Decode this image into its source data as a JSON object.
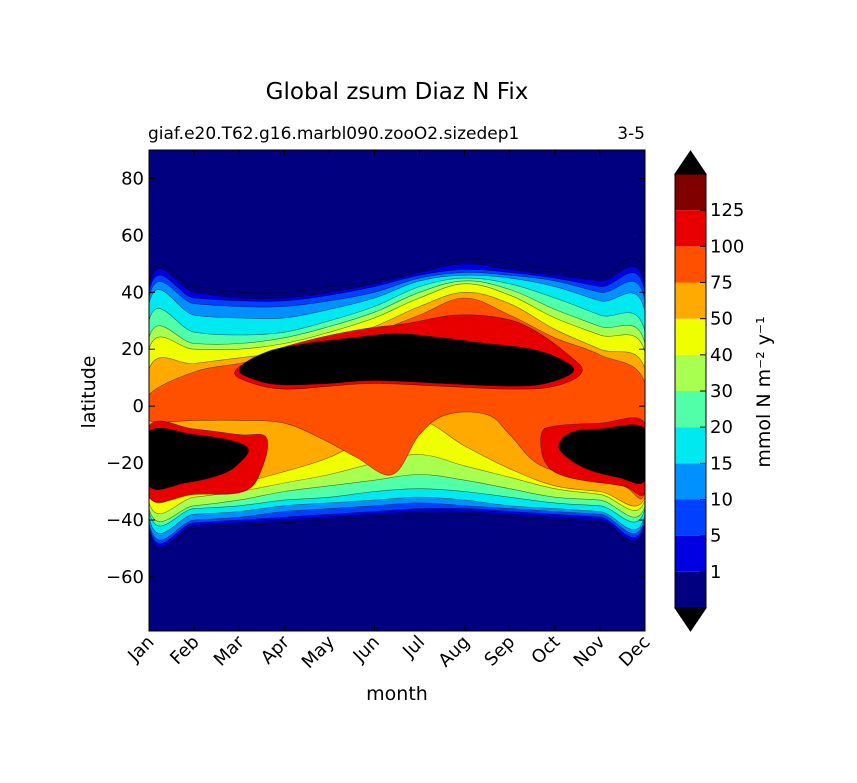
{
  "title": "Global zsum Diaz N Fix",
  "subtitle_left": "giaf.e20.T62.g16.marbl090.zooO2.sizedep1",
  "subtitle_right": "3-5",
  "chart_data": {
    "type": "heatmap",
    "subtype": "filled-contour",
    "title": "Global zsum Diaz N Fix",
    "xlabel": "month",
    "ylabel": "latitude",
    "x_categories": [
      "Jan",
      "Feb",
      "Mar",
      "Apr",
      "May",
      "Jun",
      "Jul",
      "Aug",
      "Sep",
      "Oct",
      "Nov",
      "Dec"
    ],
    "x_range": [
      0,
      11
    ],
    "y_ticks": [
      80,
      60,
      40,
      20,
      0,
      -20,
      -40,
      -60
    ],
    "y_range": [
      -79,
      90
    ],
    "colorbar": {
      "label": "mmol N m⁻² y⁻¹",
      "extend": "both",
      "levels": [
        1,
        5,
        10,
        15,
        20,
        30,
        40,
        50,
        75,
        100,
        125
      ],
      "tick_labels": [
        "1",
        "5",
        "10",
        "15",
        "20",
        "30",
        "40",
        "50",
        "75",
        "100",
        "125"
      ],
      "colors": [
        "#000080",
        "#0000e0",
        "#0040ff",
        "#0090ff",
        "#00e8f0",
        "#50ffa8",
        "#a8ff50",
        "#f0ff00",
        "#ffaa00",
        "#ff5000",
        "#e80000",
        "#800000"
      ],
      "over_color": "#000000",
      "under_color": "#000080"
    },
    "regions": [
      {
        "level": 1,
        "points": [
          [
            0,
            43
          ],
          [
            1,
            42
          ],
          [
            2,
            40
          ],
          [
            3,
            40
          ],
          [
            4,
            42
          ],
          [
            5,
            44
          ],
          [
            6,
            48
          ],
          [
            7,
            52
          ],
          [
            8,
            50
          ],
          [
            9,
            48
          ],
          [
            10,
            46
          ],
          [
            11,
            45
          ],
          [
            11,
            -42
          ],
          [
            10,
            -41
          ],
          [
            9,
            -40
          ],
          [
            8,
            -39
          ],
          [
            7,
            -38
          ],
          [
            6,
            -38
          ],
          [
            5,
            -39
          ],
          [
            4,
            -40
          ],
          [
            3,
            -41
          ],
          [
            2,
            -42
          ],
          [
            1,
            -43
          ],
          [
            0,
            -44
          ]
        ]
      },
      {
        "level": 5,
        "points": [
          [
            0,
            42
          ],
          [
            1,
            40
          ],
          [
            2,
            38
          ],
          [
            3,
            38
          ],
          [
            4,
            40
          ],
          [
            5,
            43
          ],
          [
            6,
            47
          ],
          [
            7,
            50
          ],
          [
            8,
            48
          ],
          [
            9,
            46
          ],
          [
            10,
            44
          ],
          [
            11,
            42
          ],
          [
            11,
            -41
          ],
          [
            10,
            -40
          ],
          [
            9,
            -39
          ],
          [
            8,
            -38
          ],
          [
            7,
            -37
          ],
          [
            6,
            -37
          ],
          [
            5,
            -38
          ],
          [
            4,
            -39
          ],
          [
            3,
            -40
          ],
          [
            2,
            -41
          ],
          [
            1,
            -42
          ],
          [
            0,
            -43
          ]
        ]
      },
      {
        "level": 10,
        "points": [
          [
            0,
            40
          ],
          [
            1,
            38
          ],
          [
            2,
            37
          ],
          [
            3,
            37
          ],
          [
            4,
            39
          ],
          [
            5,
            42
          ],
          [
            6,
            46
          ],
          [
            7,
            48
          ],
          [
            8,
            47
          ],
          [
            9,
            45
          ],
          [
            10,
            42
          ],
          [
            11,
            40
          ],
          [
            11,
            -40
          ],
          [
            10,
            -39
          ],
          [
            9,
            -38
          ],
          [
            8,
            -37
          ],
          [
            7,
            -36
          ],
          [
            6,
            -36
          ],
          [
            5,
            -37
          ],
          [
            4,
            -38
          ],
          [
            3,
            -39
          ],
          [
            2,
            -40
          ],
          [
            1,
            -41
          ],
          [
            0,
            -42
          ]
        ]
      },
      {
        "level": 15,
        "points": [
          [
            0,
            38
          ],
          [
            1,
            36
          ],
          [
            2,
            35
          ],
          [
            3,
            35
          ],
          [
            4,
            37
          ],
          [
            5,
            40
          ],
          [
            6,
            45
          ],
          [
            7,
            47
          ],
          [
            8,
            46
          ],
          [
            9,
            44
          ],
          [
            10,
            40
          ],
          [
            11,
            37
          ],
          [
            11,
            -39
          ],
          [
            10,
            -38
          ],
          [
            9,
            -37
          ],
          [
            8,
            -36
          ],
          [
            7,
            -35
          ],
          [
            6,
            -34
          ],
          [
            5,
            -35
          ],
          [
            4,
            -36
          ],
          [
            3,
            -37
          ],
          [
            2,
            -39
          ],
          [
            1,
            -40
          ],
          [
            0,
            -41
          ]
        ]
      },
      {
        "level": 20,
        "points": [
          [
            0,
            36
          ],
          [
            1,
            32
          ],
          [
            2,
            31
          ],
          [
            3,
            31
          ],
          [
            4,
            34
          ],
          [
            5,
            38
          ],
          [
            6,
            44
          ],
          [
            7,
            46
          ],
          [
            8,
            45
          ],
          [
            9,
            42
          ],
          [
            10,
            37
          ],
          [
            11,
            33
          ],
          [
            11,
            -38
          ],
          [
            10,
            -37
          ],
          [
            9,
            -36
          ],
          [
            8,
            -35
          ],
          [
            7,
            -33
          ],
          [
            6,
            -32
          ],
          [
            5,
            -33
          ],
          [
            4,
            -34
          ],
          [
            3,
            -35
          ],
          [
            2,
            -37
          ],
          [
            1,
            -38
          ],
          [
            0,
            -39
          ]
        ]
      },
      {
        "level": 30,
        "points": [
          [
            0,
            30
          ],
          [
            1,
            26
          ],
          [
            2,
            25
          ],
          [
            3,
            26
          ],
          [
            4,
            30
          ],
          [
            5,
            35
          ],
          [
            6,
            42
          ],
          [
            7,
            45
          ],
          [
            8,
            43
          ],
          [
            9,
            38
          ],
          [
            10,
            32
          ],
          [
            11,
            26
          ],
          [
            11,
            -36
          ],
          [
            10,
            -35
          ],
          [
            9,
            -34
          ],
          [
            8,
            -32
          ],
          [
            7,
            -30
          ],
          [
            6,
            -29
          ],
          [
            5,
            -30
          ],
          [
            4,
            -32
          ],
          [
            3,
            -33
          ],
          [
            2,
            -35
          ],
          [
            1,
            -36
          ],
          [
            0,
            -37
          ]
        ]
      },
      {
        "level": 40,
        "points": [
          [
            0,
            24
          ],
          [
            1,
            22
          ],
          [
            2,
            22
          ],
          [
            3,
            24
          ],
          [
            4,
            28
          ],
          [
            5,
            33
          ],
          [
            6,
            40
          ],
          [
            7,
            44
          ],
          [
            8,
            41
          ],
          [
            9,
            34
          ],
          [
            10,
            28
          ],
          [
            11,
            22
          ],
          [
            11,
            -35
          ],
          [
            10,
            -33
          ],
          [
            9,
            -32
          ],
          [
            8,
            -29
          ],
          [
            7,
            -26
          ],
          [
            6,
            -24
          ],
          [
            5,
            -26
          ],
          [
            4,
            -28
          ],
          [
            3,
            -30
          ],
          [
            2,
            -33
          ],
          [
            1,
            -35
          ],
          [
            0,
            -36
          ]
        ]
      },
      {
        "level": 50,
        "points": [
          [
            0,
            20
          ],
          [
            1,
            20
          ],
          [
            2,
            20
          ],
          [
            3,
            22
          ],
          [
            4,
            26
          ],
          [
            5,
            31
          ],
          [
            6,
            38
          ],
          [
            7,
            43
          ],
          [
            8,
            39
          ],
          [
            9,
            31
          ],
          [
            10,
            25
          ],
          [
            11,
            19
          ],
          [
            11,
            -33
          ],
          [
            10,
            -31
          ],
          [
            9,
            -29
          ],
          [
            8,
            -25
          ],
          [
            7,
            -21
          ],
          [
            6,
            -17
          ],
          [
            5,
            -20
          ],
          [
            4,
            -24
          ],
          [
            3,
            -27
          ],
          [
            2,
            -30
          ],
          [
            1,
            -32
          ],
          [
            0,
            -34
          ]
        ]
      },
      {
        "level": 75,
        "points": [
          [
            0,
            13
          ],
          [
            1,
            15
          ],
          [
            2,
            17
          ],
          [
            3,
            19
          ],
          [
            4,
            23
          ],
          [
            5,
            28
          ],
          [
            6,
            35
          ],
          [
            7,
            40
          ],
          [
            8,
            36
          ],
          [
            9,
            27
          ],
          [
            10,
            20
          ],
          [
            11,
            13
          ],
          [
            11,
            -32
          ],
          [
            10,
            -30
          ],
          [
            9,
            -28
          ],
          [
            8,
            -22
          ],
          [
            7,
            -14
          ],
          [
            6,
            -5
          ],
          [
            5,
            -10
          ],
          [
            4,
            -18
          ],
          [
            3,
            -23
          ],
          [
            2,
            -27
          ],
          [
            1,
            -29
          ],
          [
            0,
            -31
          ]
        ]
      },
      {
        "level": 100,
        "points": [
          [
            0,
            -5
          ],
          [
            1,
            -5
          ],
          [
            2,
            -5
          ],
          [
            3,
            -6
          ],
          [
            3.9,
            -12
          ],
          [
            4.6,
            -18
          ],
          [
            5.4,
            -24
          ],
          [
            6,
            -10
          ],
          [
            6.6,
            -3
          ],
          [
            7.5,
            -3
          ],
          [
            8,
            -10
          ],
          [
            8.6,
            -20
          ],
          [
            9.5,
            -25
          ],
          [
            10.5,
            -28
          ],
          [
            11,
            -30
          ],
          [
            11,
            8
          ],
          [
            10,
            18
          ],
          [
            9,
            24
          ],
          [
            8,
            32
          ],
          [
            7,
            38
          ],
          [
            6,
            32
          ],
          [
            5,
            26
          ],
          [
            4,
            22
          ],
          [
            3,
            18
          ],
          [
            2,
            15
          ],
          [
            1,
            12
          ],
          [
            0,
            4
          ]
        ]
      },
      {
        "level": 125,
        "points": [
          [
            0,
            -7
          ],
          [
            1,
            -8
          ],
          [
            2,
            -10
          ],
          [
            2.6,
            -11
          ],
          [
            2.5,
            -22
          ],
          [
            2.1,
            -30
          ],
          [
            1,
            -31
          ],
          [
            0,
            -32
          ]
        ]
      },
      {
        "level": 125,
        "points": [
          [
            11,
            -6
          ],
          [
            10,
            -6
          ],
          [
            9,
            -7
          ],
          [
            8.7,
            -10
          ],
          [
            8.8,
            -20
          ],
          [
            9.3,
            -25
          ],
          [
            10.5,
            -28
          ],
          [
            11,
            -30
          ]
        ]
      },
      {
        "level": 125,
        "points": [
          [
            1.9,
            12
          ],
          [
            2.5,
            18
          ],
          [
            3.5,
            23
          ],
          [
            4.7,
            27
          ],
          [
            5.7,
            29
          ],
          [
            6.8,
            32
          ],
          [
            7.8,
            31
          ],
          [
            8.5,
            27
          ],
          [
            9.3,
            18
          ],
          [
            9.6,
            12
          ],
          [
            9,
            7
          ],
          [
            8,
            6
          ],
          [
            6.5,
            7
          ],
          [
            5,
            8
          ],
          [
            4,
            7
          ],
          [
            3,
            6
          ],
          [
            2.3,
            8
          ]
        ]
      },
      {
        "level": 150,
        "points": [
          [
            0,
            -9
          ],
          [
            1,
            -10
          ],
          [
            1.8,
            -12
          ],
          [
            2.2,
            -15
          ],
          [
            2.0,
            -20
          ],
          [
            1.6,
            -24
          ],
          [
            0.8,
            -27
          ],
          [
            0,
            -28
          ]
        ]
      },
      {
        "level": 150,
        "points": [
          [
            11,
            -8
          ],
          [
            10,
            -8
          ],
          [
            9.4,
            -9
          ],
          [
            9.1,
            -13
          ],
          [
            9.2,
            -17
          ],
          [
            9.7,
            -22
          ],
          [
            10.4,
            -25
          ],
          [
            11,
            -26
          ]
        ]
      },
      {
        "level": 150,
        "points": [
          [
            2.0,
            13
          ],
          [
            2.6,
            19
          ],
          [
            3.5,
            22
          ],
          [
            4.5,
            24
          ],
          [
            5.5,
            25.5
          ],
          [
            6.5,
            24
          ],
          [
            7.5,
            22
          ],
          [
            8.5,
            20
          ],
          [
            9.2,
            16
          ],
          [
            9.4,
            12
          ],
          [
            8.8,
            8
          ],
          [
            8,
            7
          ],
          [
            6.5,
            8
          ],
          [
            5,
            9
          ],
          [
            4,
            8
          ],
          [
            3,
            7.5
          ],
          [
            2.4,
            9
          ]
        ]
      }
    ]
  }
}
